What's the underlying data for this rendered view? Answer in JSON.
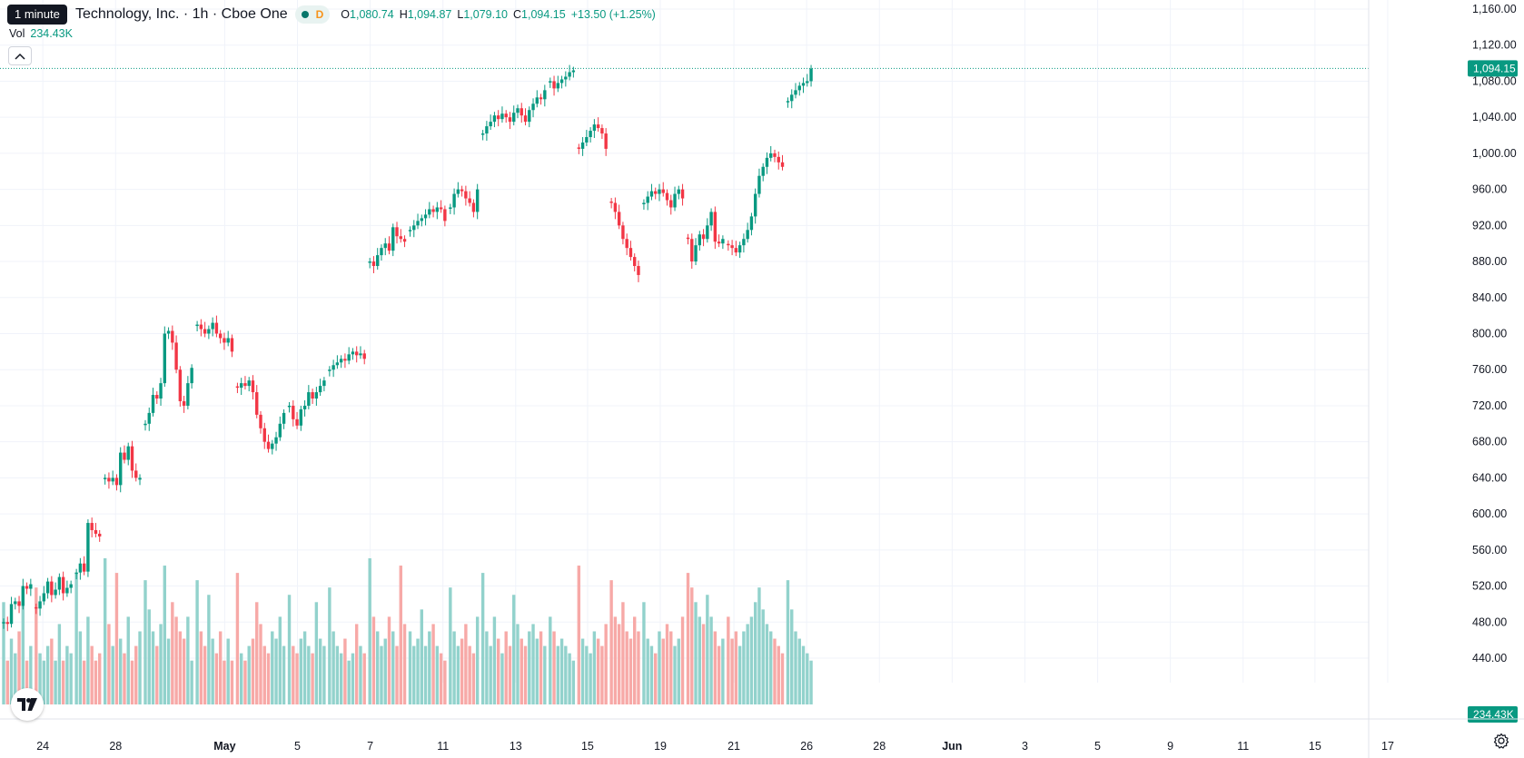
{
  "header": {
    "tooltip": "1 minute",
    "title": "Technology, Inc. · 1h · Cboe One",
    "status_label": "D",
    "ohlc": [
      {
        "k": "O",
        "v": "1,080.74"
      },
      {
        "k": "H",
        "v": "1,094.87"
      },
      {
        "k": "L",
        "v": "1,079.10"
      },
      {
        "k": "C",
        "v": "1,094.15"
      },
      {
        "k": "",
        "v": "+13.50 (+1.25%)"
      }
    ]
  },
  "volume_legend": {
    "label": "Vol",
    "value": "234.43K"
  },
  "colors": {
    "up": "#089981",
    "down": "#f23645",
    "up_volume": "#92d2cc",
    "down_volume": "#f7a9a7"
  },
  "chart_data": {
    "type": "candlestick",
    "ylim": [
      420,
      1170
    ],
    "price_axis_ticks": [
      "1,160.00",
      "1,120.00",
      "1,080.00",
      "1,040.00",
      "1,000.00",
      "960.00",
      "920.00",
      "880.00",
      "840.00",
      "800.00",
      "760.00",
      "720.00",
      "680.00",
      "640.00",
      "600.00",
      "560.00",
      "520.00",
      "480.00",
      "440.00"
    ],
    "last_price": {
      "value": 1094.15,
      "label": "1,094.15"
    },
    "last_volume": {
      "label": "234.43K"
    },
    "x_ticks": [
      {
        "label": "24",
        "bold": false
      },
      {
        "label": "28",
        "bold": false
      },
      {
        "label": "May",
        "bold": true
      },
      {
        "label": "5",
        "bold": false
      },
      {
        "label": "7",
        "bold": false
      },
      {
        "label": "11",
        "bold": false
      },
      {
        "label": "13",
        "bold": false
      },
      {
        "label": "15",
        "bold": false
      },
      {
        "label": "19",
        "bold": false
      },
      {
        "label": "21",
        "bold": false
      },
      {
        "label": "26",
        "bold": false
      },
      {
        "label": "28",
        "bold": false
      },
      {
        "label": "Jun",
        "bold": true
      },
      {
        "label": "3",
        "bold": false
      },
      {
        "label": "5",
        "bold": false
      },
      {
        "label": "9",
        "bold": false
      },
      {
        "label": "11",
        "bold": false
      },
      {
        "label": "15",
        "bold": false
      },
      {
        "label": "17",
        "bold": false
      }
    ],
    "sessions": [
      {
        "start_close": 490,
        "path": [
          [
            480,
            "u"
          ],
          [
            478,
            "d"
          ],
          [
            500,
            "u"
          ],
          [
            503,
            "u"
          ],
          [
            498,
            "d"
          ],
          [
            520,
            "u"
          ],
          [
            517,
            "d"
          ],
          [
            522,
            "u"
          ]
        ],
        "vols": [
          0.7,
          0.3,
          0.45,
          0.35,
          0.5,
          0.8,
          0.3,
          0.4
        ]
      },
      {
        "start_close": 505,
        "path": [
          [
            495,
            "d"
          ],
          [
            503,
            "u"
          ],
          [
            512,
            "u"
          ],
          [
            525,
            "u"
          ],
          [
            510,
            "d"
          ],
          [
            516,
            "u"
          ],
          [
            530,
            "u"
          ],
          [
            512,
            "d"
          ],
          [
            518,
            "u"
          ],
          [
            522,
            "u"
          ]
        ],
        "vols": [
          0.8,
          0.35,
          0.3,
          0.4,
          0.45,
          0.3,
          0.55,
          0.3,
          0.4,
          0.35
        ]
      },
      {
        "start_close": 525,
        "path": [
          [
            535,
            "u"
          ],
          [
            545,
            "u"
          ],
          [
            536,
            "d"
          ],
          [
            590,
            "u"
          ],
          [
            582,
            "d"
          ],
          [
            578,
            "d"
          ],
          [
            575,
            "d"
          ]
        ],
        "vols": [
          0.9,
          0.5,
          0.3,
          0.6,
          0.4,
          0.3,
          0.35
        ]
      },
      {
        "start_close": 575,
        "path": [
          [
            640,
            "u"
          ],
          [
            636,
            "d"
          ],
          [
            640,
            "u"
          ],
          [
            632,
            "d"
          ],
          [
            668,
            "u"
          ],
          [
            660,
            "d"
          ],
          [
            675,
            "u"
          ],
          [
            648,
            "d"
          ],
          [
            640,
            "d"
          ],
          [
            640,
            "u"
          ]
        ],
        "vols": [
          1.0,
          0.55,
          0.4,
          0.9,
          0.45,
          0.35,
          0.6,
          0.3,
          0.4,
          0.5
        ]
      },
      {
        "start_close": 640,
        "path": [
          [
            700,
            "u"
          ],
          [
            712,
            "u"
          ],
          [
            732,
            "u"
          ],
          [
            728,
            "d"
          ],
          [
            745,
            "u"
          ],
          [
            800,
            "u"
          ],
          [
            803,
            "u"
          ],
          [
            790,
            "d"
          ],
          [
            760,
            "d"
          ],
          [
            725,
            "d"
          ],
          [
            720,
            "d"
          ],
          [
            745,
            "u"
          ],
          [
            762,
            "u"
          ]
        ],
        "vols": [
          0.85,
          0.65,
          0.5,
          0.4,
          0.55,
          0.95,
          0.45,
          0.7,
          0.6,
          0.5,
          0.45,
          0.6,
          0.3
        ]
      },
      {
        "start_close": 762,
        "path": [
          [
            810,
            "u"
          ],
          [
            805,
            "d"
          ],
          [
            800,
            "d"
          ],
          [
            805,
            "u"
          ],
          [
            812,
            "u"
          ],
          [
            800,
            "d"
          ],
          [
            795,
            "d"
          ],
          [
            790,
            "d"
          ],
          [
            795,
            "u"
          ],
          [
            780,
            "d"
          ]
        ],
        "vols": [
          0.85,
          0.5,
          0.4,
          0.75,
          0.45,
          0.35,
          0.5,
          0.3,
          0.45,
          0.3
        ]
      },
      {
        "start_close": 780,
        "path": [
          [
            740,
            "d"
          ],
          [
            745,
            "u"
          ],
          [
            742,
            "d"
          ],
          [
            748,
            "u"
          ],
          [
            735,
            "d"
          ],
          [
            710,
            "d"
          ],
          [
            695,
            "d"
          ],
          [
            680,
            "d"
          ],
          [
            672,
            "d"
          ],
          [
            678,
            "u"
          ],
          [
            685,
            "u"
          ],
          [
            700,
            "u"
          ],
          [
            712,
            "u"
          ]
        ],
        "vols": [
          0.9,
          0.35,
          0.3,
          0.4,
          0.45,
          0.7,
          0.55,
          0.4,
          0.35,
          0.5,
          0.45,
          0.6,
          0.4
        ]
      },
      {
        "start_close": 712,
        "path": [
          [
            720,
            "u"
          ],
          [
            705,
            "d"
          ],
          [
            698,
            "d"
          ],
          [
            716,
            "u"
          ],
          [
            720,
            "u"
          ],
          [
            735,
            "u"
          ],
          [
            728,
            "d"
          ],
          [
            735,
            "u"
          ],
          [
            742,
            "u"
          ],
          [
            748,
            "u"
          ]
        ],
        "vols": [
          0.75,
          0.4,
          0.35,
          0.45,
          0.5,
          0.4,
          0.35,
          0.7,
          0.45,
          0.4
        ]
      },
      {
        "start_close": 748,
        "path": [
          [
            760,
            "u"
          ],
          [
            765,
            "u"
          ],
          [
            768,
            "u"
          ],
          [
            772,
            "u"
          ],
          [
            770,
            "d"
          ],
          [
            777,
            "u"
          ],
          [
            780,
            "u"
          ],
          [
            776,
            "d"
          ],
          [
            778,
            "u"
          ],
          [
            772,
            "d"
          ]
        ],
        "vols": [
          0.8,
          0.5,
          0.4,
          0.35,
          0.45,
          0.3,
          0.35,
          0.55,
          0.4,
          0.35
        ]
      },
      {
        "start_close": 772,
        "path": [
          [
            880,
            "u"
          ],
          [
            875,
            "d"
          ],
          [
            887,
            "u"
          ],
          [
            895,
            "u"
          ],
          [
            900,
            "u"
          ],
          [
            892,
            "d"
          ],
          [
            918,
            "u"
          ],
          [
            908,
            "d"
          ],
          [
            905,
            "d"
          ],
          [
            902,
            "d"
          ]
        ],
        "vols": [
          1.0,
          0.6,
          0.5,
          0.4,
          0.45,
          0.6,
          0.5,
          0.4,
          0.95,
          0.55
        ]
      },
      {
        "start_close": 902,
        "path": [
          [
            915,
            "u"
          ],
          [
            920,
            "u"
          ],
          [
            925,
            "u"
          ],
          [
            928,
            "u"
          ],
          [
            932,
            "u"
          ],
          [
            938,
            "u"
          ],
          [
            935,
            "d"
          ],
          [
            940,
            "u"
          ],
          [
            938,
            "d"
          ],
          [
            925,
            "d"
          ]
        ],
        "vols": [
          0.5,
          0.4,
          0.45,
          0.65,
          0.4,
          0.5,
          0.55,
          0.4,
          0.35,
          0.3
        ]
      },
      {
        "start_close": 925,
        "path": [
          [
            940,
            "u"
          ],
          [
            955,
            "u"
          ],
          [
            960,
            "u"
          ],
          [
            958,
            "d"
          ],
          [
            950,
            "d"
          ],
          [
            945,
            "d"
          ],
          [
            935,
            "d"
          ],
          [
            960,
            "u"
          ]
        ],
        "vols": [
          0.8,
          0.5,
          0.4,
          0.45,
          0.55,
          0.4,
          0.35,
          0.6
        ]
      },
      {
        "start_close": 960,
        "path": [
          [
            1022,
            "u"
          ],
          [
            1030,
            "u"
          ],
          [
            1035,
            "u"
          ],
          [
            1042,
            "u"
          ],
          [
            1038,
            "d"
          ],
          [
            1044,
            "u"
          ],
          [
            1040,
            "d"
          ],
          [
            1035,
            "d"
          ],
          [
            1045,
            "u"
          ],
          [
            1050,
            "u"
          ],
          [
            1042,
            "d"
          ],
          [
            1035,
            "d"
          ],
          [
            1048,
            "u"
          ],
          [
            1055,
            "u"
          ],
          [
            1062,
            "u"
          ],
          [
            1060,
            "d"
          ],
          [
            1070,
            "u"
          ]
        ],
        "vols": [
          0.9,
          0.5,
          0.4,
          0.6,
          0.45,
          0.35,
          0.5,
          0.4,
          0.75,
          0.55,
          0.45,
          0.4,
          0.5,
          0.55,
          0.45,
          0.5,
          0.4
        ]
      },
      {
        "start_close": 1070,
        "path": [
          [
            1080,
            "u"
          ],
          [
            1072,
            "d"
          ],
          [
            1078,
            "u"
          ],
          [
            1082,
            "u"
          ],
          [
            1085,
            "u"
          ],
          [
            1090,
            "u"
          ],
          [
            1092,
            "u"
          ]
        ],
        "vols": [
          0.6,
          0.5,
          0.4,
          0.45,
          0.4,
          0.35,
          0.3
        ]
      },
      {
        "start_close": 1000,
        "path": [
          [
            1005,
            "d"
          ],
          [
            1012,
            "u"
          ],
          [
            1018,
            "u"
          ],
          [
            1025,
            "u"
          ],
          [
            1032,
            "u"
          ],
          [
            1028,
            "d"
          ],
          [
            1022,
            "d"
          ],
          [
            1005,
            "d"
          ]
        ],
        "vols": [
          0.95,
          0.45,
          0.4,
          0.35,
          0.5,
          0.45,
          0.4,
          0.55
        ]
      },
      {
        "start_close": 1005,
        "path": [
          [
            945,
            "d"
          ],
          [
            935,
            "d"
          ],
          [
            920,
            "d"
          ],
          [
            905,
            "d"
          ],
          [
            895,
            "d"
          ],
          [
            885,
            "d"
          ],
          [
            875,
            "d"
          ],
          [
            865,
            "d"
          ]
        ],
        "vols": [
          0.85,
          0.6,
          0.55,
          0.7,
          0.5,
          0.45,
          0.6,
          0.5
        ]
      },
      {
        "start_close": 865,
        "path": [
          [
            945,
            "u"
          ],
          [
            952,
            "u"
          ],
          [
            958,
            "u"
          ],
          [
            955,
            "d"
          ],
          [
            960,
            "u"
          ],
          [
            956,
            "d"
          ],
          [
            948,
            "d"
          ],
          [
            940,
            "d"
          ],
          [
            955,
            "u"
          ],
          [
            960,
            "u"
          ],
          [
            950,
            "d"
          ]
        ],
        "vols": [
          0.7,
          0.45,
          0.4,
          0.35,
          0.5,
          0.45,
          0.55,
          0.5,
          0.4,
          0.45,
          0.6
        ]
      },
      {
        "start_close": 950,
        "path": [
          [
            905,
            "d"
          ],
          [
            880,
            "d"
          ],
          [
            898,
            "u"
          ],
          [
            910,
            "u"
          ],
          [
            905,
            "d"
          ],
          [
            920,
            "u"
          ],
          [
            935,
            "u"
          ],
          [
            902,
            "d"
          ],
          [
            900,
            "d"
          ],
          [
            905,
            "u"
          ]
        ],
        "vols": [
          0.9,
          0.8,
          0.7,
          0.6,
          0.55,
          0.75,
          0.6,
          0.5,
          0.4,
          0.45
        ]
      },
      {
        "start_close": 905,
        "path": [
          [
            898,
            "d"
          ],
          [
            895,
            "d"
          ],
          [
            890,
            "d"
          ],
          [
            898,
            "u"
          ],
          [
            905,
            "u"
          ],
          [
            915,
            "u"
          ],
          [
            930,
            "u"
          ],
          [
            955,
            "u"
          ],
          [
            975,
            "u"
          ],
          [
            985,
            "u"
          ],
          [
            995,
            "u"
          ],
          [
            1000,
            "u"
          ],
          [
            996,
            "d"
          ],
          [
            990,
            "d"
          ],
          [
            985,
            "d"
          ]
        ],
        "vols": [
          0.6,
          0.45,
          0.5,
          0.4,
          0.5,
          0.55,
          0.6,
          0.7,
          0.8,
          0.65,
          0.55,
          0.5,
          0.45,
          0.4,
          0.35
        ]
      },
      {
        "start_close": 985,
        "path": [
          [
            1058,
            "u"
          ],
          [
            1065,
            "u"
          ],
          [
            1070,
            "u"
          ],
          [
            1075,
            "u"
          ],
          [
            1078,
            "u"
          ],
          [
            1080,
            "u"
          ],
          [
            1094,
            "u"
          ]
        ],
        "vols": [
          0.85,
          0.65,
          0.5,
          0.45,
          0.4,
          0.35,
          0.3
        ]
      }
    ]
  }
}
